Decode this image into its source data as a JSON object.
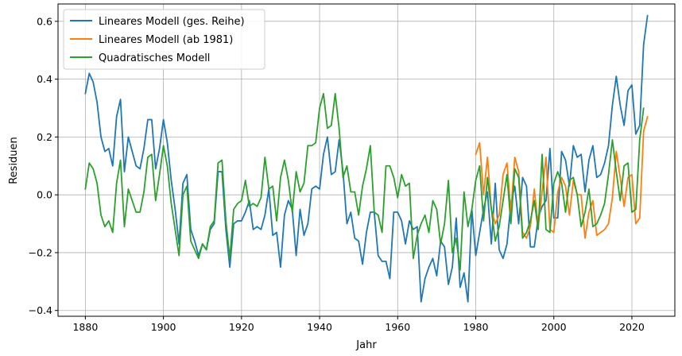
{
  "chart_data": {
    "type": "line",
    "xlabel": "Jahr",
    "ylabel": "Residuen",
    "xlim": [
      1873,
      2031
    ],
    "ylim": [
      -0.42,
      0.66
    ],
    "xticks": [
      1880,
      1900,
      1920,
      1940,
      1960,
      1980,
      2000,
      2020
    ],
    "yticks": [
      -0.4,
      -0.2,
      0.0,
      0.2,
      0.4,
      0.6
    ],
    "xtick_labels": [
      "1880",
      "1900",
      "1920",
      "1940",
      "1960",
      "1980",
      "2000",
      "2020"
    ],
    "ytick_labels": [
      "−0.4",
      "−0.2",
      "0.0",
      "0.2",
      "0.4",
      "0.6"
    ],
    "grid": true,
    "legend_position": "top-left",
    "series": [
      {
        "name": "Lineares Modell (ges. Reihe)",
        "color": "#1f77b4",
        "x_start": 1880,
        "values": [
          0.35,
          0.42,
          0.39,
          0.32,
          0.2,
          0.15,
          0.16,
          0.1,
          0.27,
          0.33,
          0.08,
          0.2,
          0.15,
          0.1,
          0.09,
          0.16,
          0.26,
          0.26,
          0.09,
          0.16,
          0.26,
          0.18,
          0.05,
          -0.05,
          -0.17,
          0.04,
          0.07,
          -0.12,
          -0.16,
          -0.21,
          -0.17,
          -0.19,
          -0.12,
          -0.1,
          0.08,
          0.08,
          -0.12,
          -0.25,
          -0.1,
          -0.09,
          -0.09,
          -0.06,
          -0.02,
          -0.12,
          -0.11,
          -0.12,
          -0.07,
          0.02,
          -0.14,
          -0.13,
          -0.25,
          -0.07,
          -0.02,
          -0.05,
          -0.21,
          -0.05,
          -0.14,
          -0.1,
          0.02,
          0.03,
          0.02,
          0.14,
          0.2,
          0.07,
          0.08,
          0.19,
          0.08,
          -0.1,
          -0.06,
          -0.15,
          -0.16,
          -0.24,
          -0.13,
          -0.06,
          -0.06,
          -0.21,
          -0.23,
          -0.23,
          -0.29,
          -0.06,
          -0.06,
          -0.09,
          -0.17,
          -0.09,
          -0.12,
          -0.11,
          -0.37,
          -0.29,
          -0.25,
          -0.22,
          -0.28,
          -0.16,
          -0.18,
          -0.31,
          -0.25,
          -0.08,
          -0.32,
          -0.27,
          -0.37,
          -0.05,
          -0.21,
          -0.13,
          -0.05,
          0.01,
          -0.17,
          0.04,
          -0.19,
          -0.22,
          -0.17,
          -0.03,
          0.03,
          -0.1,
          0.06,
          0.03,
          -0.18,
          -0.18,
          -0.08,
          -0.04,
          -0.02,
          0.16,
          -0.08,
          -0.08,
          0.15,
          0.12,
          0.03,
          0.17,
          0.13,
          0.14,
          0.01,
          0.12,
          0.17,
          0.06,
          0.07,
          0.11,
          0.17,
          0.31,
          0.41,
          0.31,
          0.24,
          0.36,
          0.38,
          0.21,
          0.24,
          0.52,
          0.62
        ]
      },
      {
        "name": "Lineares Modell (ab 1981)",
        "color": "#ff7f0e",
        "x_start": 1980,
        "values": [
          0.14,
          0.18,
          0.0,
          0.13,
          -0.05,
          -0.1,
          -0.07,
          0.07,
          0.11,
          -0.06,
          0.13,
          0.08,
          -0.13,
          -0.15,
          -0.11,
          0.02,
          -0.11,
          0.01,
          0.13,
          -0.12,
          -0.13,
          0.01,
          0.06,
          0.03,
          -0.07,
          0.05,
          0.0,
          0.0,
          -0.15,
          -0.06,
          -0.02,
          -0.14,
          -0.13,
          -0.12,
          -0.1,
          -0.01,
          0.15,
          0.06,
          -0.04,
          0.06,
          0.07,
          -0.1,
          -0.08,
          0.22,
          0.27
        ]
      },
      {
        "name": "Quadratisches Modell",
        "color": "#2ca02c",
        "x_start": 1880,
        "values": [
          0.02,
          0.11,
          0.09,
          0.04,
          -0.07,
          -0.11,
          -0.09,
          -0.13,
          0.04,
          0.12,
          -0.11,
          0.02,
          -0.02,
          -0.06,
          -0.06,
          0.01,
          0.13,
          0.14,
          -0.02,
          0.07,
          0.17,
          0.1,
          -0.03,
          -0.12,
          -0.21,
          0.0,
          0.03,
          -0.16,
          -0.19,
          -0.22,
          -0.17,
          -0.19,
          -0.11,
          -0.09,
          0.11,
          0.12,
          -0.09,
          -0.22,
          -0.05,
          -0.03,
          -0.02,
          0.05,
          -0.04,
          -0.03,
          -0.04,
          -0.01,
          0.13,
          0.02,
          0.03,
          -0.09,
          0.06,
          0.12,
          0.05,
          -0.06,
          0.08,
          0.01,
          0.04,
          0.17,
          0.17,
          0.18,
          0.3,
          0.35,
          0.23,
          0.24,
          0.35,
          0.23,
          0.06,
          0.1,
          0.01,
          0.01,
          -0.07,
          0.03,
          0.09,
          0.17,
          -0.06,
          -0.07,
          -0.13,
          0.1,
          0.1,
          0.06,
          -0.01,
          0.07,
          0.03,
          0.04,
          -0.22,
          -0.14,
          -0.1,
          -0.07,
          -0.13,
          -0.02,
          -0.05,
          -0.17,
          -0.1,
          0.05,
          -0.2,
          -0.15,
          -0.26,
          0.01,
          -0.11,
          -0.05,
          0.05,
          0.1,
          -0.09,
          0.06,
          -0.05,
          -0.16,
          -0.11,
          -0.02,
          0.07,
          -0.1,
          0.09,
          0.06,
          -0.15,
          -0.13,
          -0.09,
          -0.02,
          -0.12,
          0.14,
          -0.12,
          -0.13,
          0.04,
          0.08,
          0.04,
          -0.06,
          0.05,
          0.06,
          0.0,
          -0.11,
          -0.06,
          0.02,
          -0.11,
          -0.1,
          -0.07,
          -0.03,
          0.07,
          0.19,
          0.08,
          -0.02,
          0.1,
          0.11,
          -0.06,
          -0.05,
          0.19,
          0.3
        ]
      }
    ]
  }
}
